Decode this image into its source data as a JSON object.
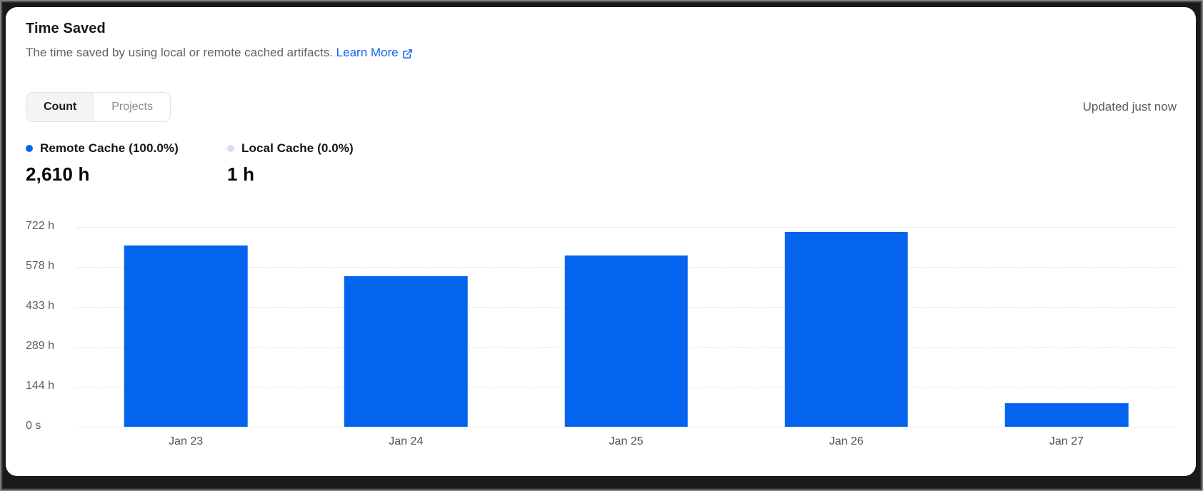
{
  "card": {
    "title": "Time Saved",
    "description": "The time saved by using local or remote cached artifacts.",
    "learn_more_label": "Learn More",
    "updated_text": "Updated just now",
    "tabs": [
      {
        "label": "Count",
        "active": true
      },
      {
        "label": "Projects",
        "active": false
      }
    ]
  },
  "legend": {
    "items": [
      {
        "label": "Remote Cache (100.0%)",
        "value": "2,610 h",
        "color": "#0564ee"
      },
      {
        "label": "Local Cache (0.0%)",
        "value": "1 h",
        "color": "#d6def1"
      }
    ]
  },
  "chart_data": {
    "type": "bar",
    "title": "Time Saved",
    "categories": [
      "Jan 23",
      "Jan 24",
      "Jan 25",
      "Jan 26",
      "Jan 27"
    ],
    "series": [
      {
        "name": "Remote Cache",
        "color": "#0564ee",
        "values": [
          655,
          545,
          620,
          705,
          85
        ]
      }
    ],
    "unit": "hours",
    "total_label": "2,610 h",
    "y_ticks": [
      {
        "value": 722,
        "label": "722 h"
      },
      {
        "value": 578,
        "label": "578 h"
      },
      {
        "value": 433,
        "label": "433 h"
      },
      {
        "value": 289,
        "label": "289 h"
      },
      {
        "value": 144,
        "label": "144 h"
      },
      {
        "value": 0,
        "label": "0 s"
      }
    ],
    "ylim": [
      0,
      722
    ],
    "grid": true,
    "legend_position": "top-left",
    "xlabel": "",
    "ylabel": ""
  },
  "colors": {
    "bar_blue": "#0564ee",
    "local_cache_dot": "#d6def1",
    "link_blue": "#0f62ef",
    "grid_line": "#e4e4e4",
    "card_background": "#ffffff",
    "frame_background": "#1a1a1a",
    "text_primary": "#171717",
    "text_secondary": "#636363"
  }
}
